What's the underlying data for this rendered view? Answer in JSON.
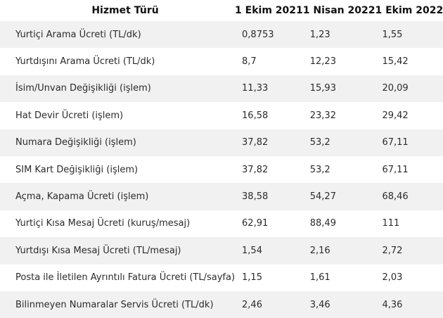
{
  "table": {
    "headers": [
      "Hizmet Türü",
      "1 Ekim 2021",
      "1 Nisan 2022",
      "1 Ekim 2022"
    ],
    "rows": [
      [
        "Yurtiçi Arama Ücreti (TL/dk)",
        "0,8753",
        "1,23",
        "1,55"
      ],
      [
        "Yurtdışını Arama Ücreti (TL/dk)",
        "8,7",
        "12,23",
        "15,42"
      ],
      [
        "İsim/Unvan Değişikliği (işlem)",
        "11,33",
        "15,93",
        "20,09"
      ],
      [
        "Hat Devir Ücreti (işlem)",
        "16,58",
        "23,32",
        "29,42"
      ],
      [
        "Numara Değişikliği (işlem)",
        "37,82",
        "53,2",
        "67,11"
      ],
      [
        "SIM Kart Değişikliği (işlem)",
        "37,82",
        "53,2",
        "67,11"
      ],
      [
        "Açma, Kapama Ücreti (işlem)",
        "38,58",
        "54,27",
        "68,46"
      ],
      [
        "Yurtiçi Kısa Mesaj Ücreti (kuruş/mesaj)",
        "62,91",
        "88,49",
        "111"
      ],
      [
        "Yurtdışı Kısa Mesaj Ücreti (TL/mesaj)",
        "1,54",
        "2,16",
        "2,72"
      ],
      [
        "Posta ile İletilen Ayrıntılı Fatura Ücreti (TL/sayfa)",
        "1,15",
        "1,61",
        "2,03"
      ],
      [
        "Bilinmeyen Numaralar Servis Ücreti (TL/dk)",
        "2,46",
        "3,46",
        "4,36"
      ]
    ]
  }
}
